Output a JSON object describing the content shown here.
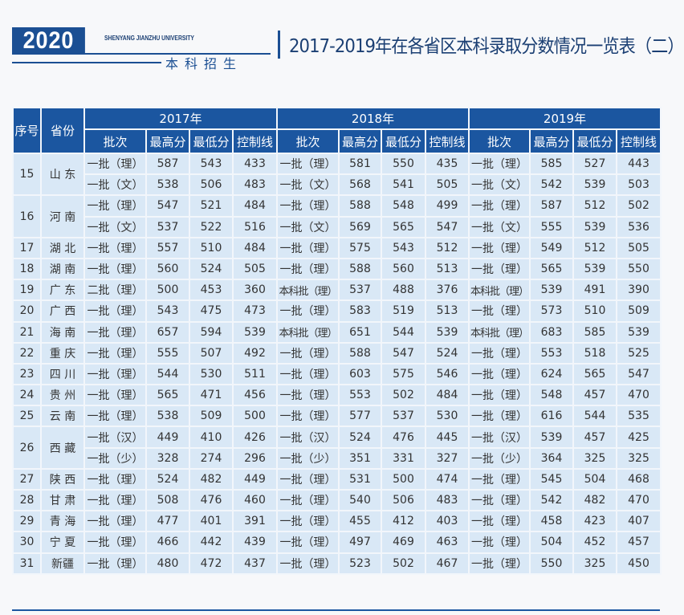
{
  "header": {
    "year_badge": "2020",
    "university": "SHENYANG JIANZHU UNIVERSITY",
    "section": "本科招生",
    "title": "2017-2019年在各省区本科录取分数情况一览表（二）"
  },
  "table": {
    "col_index": "序号",
    "col_province": "省份",
    "years": [
      "2017年",
      "2018年",
      "2019年"
    ],
    "sub_headers": [
      "批次",
      "最高分",
      "最低分",
      "控制线"
    ],
    "provinces": [
      {
        "no": "15",
        "name": "山 东",
        "rows": [
          [
            "一批（理）",
            "587",
            "543",
            "433",
            "一批（理）",
            "581",
            "550",
            "435",
            "一批（理）",
            "585",
            "527",
            "443"
          ],
          [
            "一批（文）",
            "538",
            "506",
            "483",
            "一批（文）",
            "568",
            "541",
            "505",
            "一批（文）",
            "542",
            "539",
            "503"
          ]
        ]
      },
      {
        "no": "16",
        "name": "河 南",
        "rows": [
          [
            "一批（理）",
            "547",
            "521",
            "484",
            "一批（理）",
            "588",
            "548",
            "499",
            "一批（理）",
            "587",
            "512",
            "502"
          ],
          [
            "一批（文）",
            "537",
            "522",
            "516",
            "一批（文）",
            "569",
            "565",
            "547",
            "一批（文）",
            "555",
            "539",
            "536"
          ]
        ]
      },
      {
        "no": "17",
        "name": "湖 北",
        "rows": [
          [
            "一批（理）",
            "557",
            "510",
            "484",
            "一批（理）",
            "575",
            "543",
            "512",
            "一批（理）",
            "549",
            "512",
            "505"
          ]
        ]
      },
      {
        "no": "18",
        "name": "湖 南",
        "rows": [
          [
            "一批（理）",
            "560",
            "524",
            "505",
            "一批（理）",
            "588",
            "560",
            "513",
            "一批（理）",
            "565",
            "539",
            "550"
          ]
        ]
      },
      {
        "no": "19",
        "name": "广 东",
        "rows": [
          [
            "二批（理）",
            "500",
            "453",
            "360",
            "本科批（理）",
            "537",
            "488",
            "376",
            "本科批（理）",
            "539",
            "491",
            "390"
          ]
        ]
      },
      {
        "no": "20",
        "name": "广 西",
        "rows": [
          [
            "一批（理）",
            "543",
            "475",
            "473",
            "一批（理）",
            "583",
            "519",
            "513",
            "一批（理）",
            "573",
            "510",
            "509"
          ]
        ]
      },
      {
        "no": "21",
        "name": "海 南",
        "rows": [
          [
            "一批（理）",
            "657",
            "594",
            "539",
            "本科批（理）",
            "651",
            "544",
            "539",
            "本科批（理）",
            "683",
            "585",
            "539"
          ]
        ]
      },
      {
        "no": "22",
        "name": "重 庆",
        "rows": [
          [
            "一批（理）",
            "555",
            "507",
            "492",
            "一批（理）",
            "588",
            "547",
            "524",
            "一批（理）",
            "553",
            "518",
            "525"
          ]
        ]
      },
      {
        "no": "23",
        "name": "四 川",
        "rows": [
          [
            "一批（理）",
            "544",
            "530",
            "511",
            "一批（理）",
            "603",
            "575",
            "546",
            "一批（理）",
            "624",
            "565",
            "547"
          ]
        ]
      },
      {
        "no": "24",
        "name": "贵 州",
        "rows": [
          [
            "一批（理）",
            "565",
            "471",
            "456",
            "一批（理）",
            "553",
            "502",
            "484",
            "一批（理）",
            "548",
            "457",
            "470"
          ]
        ]
      },
      {
        "no": "25",
        "name": "云 南",
        "rows": [
          [
            "一批（理）",
            "538",
            "509",
            "500",
            "一批（理）",
            "577",
            "537",
            "530",
            "一批（理）",
            "616",
            "544",
            "535"
          ]
        ]
      },
      {
        "no": "26",
        "name": "西 藏",
        "rows": [
          [
            "一批（汉）",
            "449",
            "410",
            "426",
            "一批（汉）",
            "524",
            "476",
            "445",
            "一批（汉）",
            "539",
            "457",
            "425"
          ],
          [
            "一批（少）",
            "328",
            "274",
            "296",
            "一批（少）",
            "351",
            "331",
            "327",
            "一批（少）",
            "364",
            "325",
            "325"
          ]
        ]
      },
      {
        "no": "27",
        "name": "陕 西",
        "rows": [
          [
            "一批（理）",
            "524",
            "482",
            "449",
            "一批（理）",
            "531",
            "500",
            "474",
            "一批（理）",
            "545",
            "504",
            "468"
          ]
        ]
      },
      {
        "no": "28",
        "name": "甘 肃",
        "rows": [
          [
            "一批（理）",
            "508",
            "476",
            "460",
            "一批（理）",
            "540",
            "506",
            "483",
            "一批（理）",
            "542",
            "482",
            "470"
          ]
        ]
      },
      {
        "no": "29",
        "name": "青 海",
        "rows": [
          [
            "一批（理）",
            "477",
            "401",
            "391",
            "一批（理）",
            "455",
            "412",
            "403",
            "一批（理）",
            "458",
            "423",
            "407"
          ]
        ]
      },
      {
        "no": "30",
        "name": "宁 夏",
        "rows": [
          [
            "一批（理）",
            "466",
            "442",
            "439",
            "一批（理）",
            "497",
            "469",
            "463",
            "一批（理）",
            "504",
            "452",
            "457"
          ]
        ]
      },
      {
        "no": "31",
        "name": "新疆",
        "rows": [
          [
            "一批（理）",
            "480",
            "472",
            "437",
            "一批（理）",
            "523",
            "502",
            "467",
            "一批（理）",
            "550",
            "325",
            "450"
          ]
        ]
      }
    ]
  },
  "colors": {
    "brand": "#1b56a0",
    "cell": "#d9e8f6"
  }
}
